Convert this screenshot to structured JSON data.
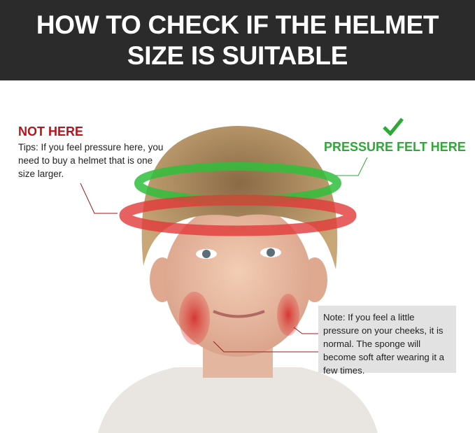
{
  "header": {
    "title_line1": "HOW TO CHECK IF THE HELMET",
    "title_line2": "SIZE IS SUITABLE"
  },
  "wrong_zone": {
    "label": "NOT HERE",
    "tip": "Tips: If you feel pressure here, you need to buy a helmet that is one size larger.",
    "color": "#b5161d"
  },
  "right_zone": {
    "label": "PRESSURE FELT HERE",
    "icon": "checkmark-icon",
    "color": "#2ea836"
  },
  "cheek_note": {
    "text": "Note: If you feel a little pressure on your cheeks, it is normal. The sponge will become soft after wearing it a few times."
  }
}
